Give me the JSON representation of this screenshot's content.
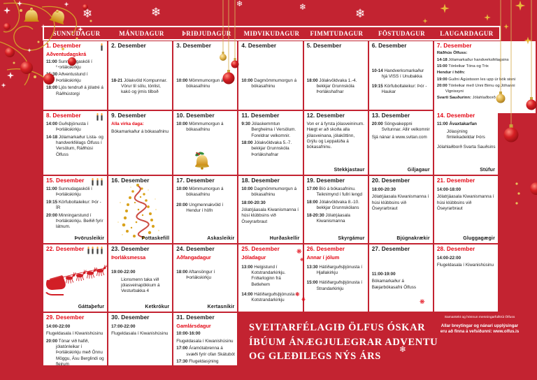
{
  "weekdays": [
    "SUNNUDAGUR",
    "MÁNUDAGUR",
    "ÞRIÐJUDAGUR",
    "MIÐVIKUDAGUR",
    "FIMMTUDAGUR",
    "FÖSTUDAGUR",
    "LAUGARDAGUR"
  ],
  "weeks": [
    [
      {
        "date": "1. Desember",
        "red": true,
        "subtitle": "Aðventudagskrá",
        "candles": 1,
        "events": [
          {
            "t": "11:00",
            "x": "Sunnudagaskóli í Þorlákskirkju"
          },
          {
            "t": "15:30",
            "x": "Aðventustund í Þorlákskirkju"
          },
          {
            "t": "18:00",
            "x": "Ljós tendruð á jólatré á Ráðhústorgi"
          }
        ]
      },
      {
        "date": "2. Desember",
        "events": [
          {
            "t": "18-21",
            "x": "Jólakvöld Kompunnar. Vörur til sölu, tónlist, kakó og ýmis tilboð",
            "c": "mt"
          }
        ]
      },
      {
        "date": "3. Desember",
        "events": [
          {
            "t": "10:00",
            "x": "Mömmumorgun á bókasafninu",
            "c": "mt"
          }
        ]
      },
      {
        "date": "4. Desember",
        "events": [
          {
            "t": "10:00",
            "x": "Dagmömmumorgun á bókasafninu",
            "c": "mt"
          }
        ]
      },
      {
        "date": "5. Desember",
        "events": [
          {
            "t": "18:00",
            "x": "Jólakvöldvaka 1.-4. bekkjar Grunnskóla Þorlákshafnar",
            "c": "mt"
          }
        ]
      },
      {
        "date": "6. Desember",
        "events": [
          {
            "t": "10-14",
            "x": "Handverksmarkaður hjá VISS í Unubakka",
            "c": "mt3"
          },
          {
            "t": "19:15",
            "x": "Körfuboltaleikur: Þór - Haukar",
            "c": "mt1"
          }
        ]
      },
      {
        "date": "7. Desember",
        "red": true,
        "wide": true,
        "events": [
          {
            "h": "Ráðhús Ölfuss:",
            "c": "noind"
          },
          {
            "t": "14-18",
            "x": "Jólamarkaður handverksfélagsins"
          },
          {
            "t": "15:00",
            "x": "Tónleikar Tóna og Trix"
          },
          {
            "h": "Hendur í höfn:",
            "c": "noind"
          },
          {
            "t": "19:00",
            "x": "Guðni Ágústsson les upp úr bók sinni"
          },
          {
            "t": "20:00",
            "x": "Tónleikar með Unni Birnu og Jóhanni Vignissyni"
          },
          {
            "h": "Svarti Sauðurinn:",
            "x": "Jólahlaðborð",
            "c": "noind"
          }
        ]
      }
    ],
    [
      {
        "date": "8. Desember",
        "red": true,
        "candles": 2,
        "events": [
          {
            "t": "14:00",
            "x": "Guðsþjónusta í Þorlákskirkju"
          },
          {
            "t": "14-18",
            "x": "Jólamarkaður Lista- og handverkfélags Ölfuss í Versölum, Ráðhúsi Ölfuss"
          }
        ]
      },
      {
        "date": "9. Desember",
        "events": [
          {
            "x": "Alla virka daga:",
            "c": "red"
          },
          {
            "x": "Bókamarkaður á bókasafninu",
            "c": "noind"
          }
        ]
      },
      {
        "date": "10. Desember",
        "decor": "bell",
        "events": [
          {
            "t": "10:00",
            "x": "Mömmumorgun á bókasafninu"
          }
        ]
      },
      {
        "date": "11. Desember",
        "events": [
          {
            "t": "9:30",
            "x": "Jólaskemmtun Bergheima í Versölum. Foreldrar velkomnir."
          },
          {
            "t": "18:00",
            "x": "Jólakvöldvaka 5.-7. bekkjar Grunnskóla Þorlákshafnar"
          }
        ]
      },
      {
        "date": "12. Desember",
        "lad": "Stekkjastaur",
        "events": [
          {
            "x": "Von er á fyrsta jólasveininum. Hægt er að skoða alla jólasveinana, jólaköttinn, Grýlu og Leppalúða á bókasafninu.",
            "c": "noind"
          }
        ]
      },
      {
        "date": "13. Desember",
        "lad": "Giljagaur",
        "events": [
          {
            "t": "20:00",
            "x": "Söngvakeppni Svítunnar. Allir velkomnir"
          },
          {
            "x": "Sjá nánar á www.svitan.com",
            "c": "noind"
          }
        ]
      },
      {
        "date": "14. Desember",
        "red": true,
        "lad": "Stúfur",
        "events": [
          {
            "t": "11:00",
            "x": "Ávaxtakarfan",
            "c": "b"
          },
          {
            "x": "Jólasýning fimleikadeildar Þórs",
            "c": "ind"
          },
          {
            "x": "Jólahlaðborð Svarta Sauðsins",
            "c": "noind mt1"
          }
        ]
      }
    ],
    [
      {
        "date": "15. Desember",
        "red": true,
        "candles": 3,
        "lad": "Þvörusleikir",
        "events": [
          {
            "t": "11:00",
            "x": "Sunnudagaskóli í Þorlákskirkju"
          },
          {
            "t": "19:15",
            "x": "Körfuboltaleikur: Þór - ÍR"
          },
          {
            "t": "20:00",
            "x": "Minningarstund í Þorlákskirkju. Beðið fyrir látnum."
          }
        ]
      },
      {
        "date": "16. Desember",
        "lad": "Pottaskefill",
        "decor": "tree",
        "events": []
      },
      {
        "date": "17. Desember",
        "lad": "Askasleikir",
        "events": [
          {
            "t": "10:00",
            "x": "Mömmumorgun á bókasafninu"
          },
          {
            "t": "20:00",
            "x": "Ungmennakvöld í Hendur í höfn",
            "c": "mt1"
          }
        ]
      },
      {
        "date": "18. Desember",
        "lad": "Hurðaskellir",
        "events": [
          {
            "t": "10:00",
            "x": "Dagmömmumorgun á bókasafninu"
          },
          {
            "t": "18:00-20:30",
            "c": "lead"
          },
          {
            "x": "Jólatrjáasala Kiwanismanna í húsi klúbbsins við Óseyrarbraut",
            "c": "noind"
          }
        ]
      },
      {
        "date": "19. Desember",
        "lad": "Skyrgámur",
        "events": [
          {
            "t": "17:00",
            "x": "Bíó á bókasafninu. Teiknimynd í fullri lengd"
          },
          {
            "t": "18:00",
            "x": "Jólakvöldvaka 8.-10. bekkjar Grunnskólans"
          },
          {
            "t": "18-20:30",
            "x": "Jólatrjáasala Kiwanismanna"
          }
        ]
      },
      {
        "date": "20. Desember",
        "lad": "Bjúgnakrækir",
        "events": [
          {
            "t": "18:00-20:30",
            "c": "lead"
          },
          {
            "x": "Jólatrjáasala Kiwanismanna í húsi klúbbsins við Óseyrarbraut",
            "c": "noind"
          }
        ]
      },
      {
        "date": "21. Desember",
        "red": true,
        "lad": "Gluggagægir",
        "events": [
          {
            "t": "14:00-18:00",
            "c": "lead"
          },
          {
            "x": "Jólatrjáasala Kiwanismanna í húsi klúbbsins við Óseyrarbraut",
            "c": "noind"
          }
        ]
      }
    ],
    [
      {
        "date": "22. Desember",
        "red": true,
        "candles": 4,
        "lad": "Gáttaþefur",
        "decor": "sleigh",
        "events": []
      },
      {
        "date": "23. Desember",
        "subtitle": "Þorláksmessa",
        "lad": "Ketkrókur",
        "events": [
          {
            "t": "19:00-22:00",
            "c": "lead mt2"
          },
          {
            "x": "Lionsmenn taka við jólasveinapökkum á Vesturbakka 4",
            "c": "ind"
          }
        ]
      },
      {
        "date": "24. Desember",
        "subtitle": "Aðfangadagur",
        "lad": "Kertasníkir",
        "events": [
          {
            "t": "18:00",
            "x": "Aftansöngur í Þorlákskirkju",
            "c": "mt2"
          }
        ]
      },
      {
        "date": "25. Desember",
        "red": true,
        "subtitle": "Jóladagur",
        "events": [
          {
            "t": "13:00",
            "x": "Helgistund í Kotstrandarkirkju. Friðarloginn frá Betlehem",
            "c": "mt1"
          },
          {
            "t": "14:00",
            "x": "Hátíðarguðsþjónusta í Kotstrandarkirkju",
            "c": "mt1"
          }
        ]
      },
      {
        "date": "26. Desember",
        "red": true,
        "subtitle": "Annar í jólum",
        "events": [
          {
            "t": "13:30",
            "x": "Hátíðarguðsþjónusta í Hjallakirkju",
            "c": "mt1"
          },
          {
            "t": "15:00",
            "x": "Hátíðarguðsþjónusta í Strandarkirkju",
            "c": "mt1"
          }
        ]
      },
      {
        "date": "27. Desember",
        "events": [
          {
            "t": "11:00-19:00",
            "c": "lead mt3"
          },
          {
            "x": "Bókamarkaður á Bæjarbókasafni Ölfuss",
            "c": "noind"
          }
        ]
      },
      {
        "date": "28. Desember",
        "red": true,
        "events": [
          {
            "t": "14:00-22:00",
            "c": "lead"
          },
          {
            "x": "Flugeldasala í Kiwanishúsinu",
            "c": "noind"
          }
        ]
      }
    ],
    [
      {
        "date": "29. Desember",
        "red": true,
        "events": [
          {
            "t": "14:00-22:00",
            "c": "lead"
          },
          {
            "x": "Flugeldasala í Kiwanishúsinu",
            "c": "noind"
          },
          {
            "t": "20:00",
            "x": "Tónar við hafið, jólatónleikar í Þorlákskirkju með Önnu Möggu, Ásu Berglindi og fleirum"
          }
        ]
      },
      {
        "date": "30. Desember",
        "events": [
          {
            "t": "17:00-22:00",
            "c": "lead"
          },
          {
            "x": "Flugeldasala í Kiwanishúsinu",
            "c": "noind"
          }
        ]
      },
      {
        "date": "31. Desember",
        "subtitle": "Gamlársdagur",
        "events": [
          {
            "t": "10:00-16:00",
            "c": "lead"
          },
          {
            "x": "Flugeldasala í Kiwanishúsinu",
            "c": "noind"
          },
          {
            "t": "17:00",
            "x": "Áramótabrenna á svæði fyrir ofan Skátubót"
          },
          {
            "t": "17:30",
            "x": "Flugeldasýning"
          }
        ]
      },
      null,
      null,
      null,
      null
    ]
  ],
  "message": {
    "lines": [
      "SVEITARFÉLAGIÐ ÖLFUS ÓSKAR",
      "ÍBÚUM ÁNÆGJULEGRAR ADVENTU",
      "OG GLEÐILEGS NÝS ÁRS"
    ]
  },
  "credits": {
    "line1": "Samantekt og hönnun menningarfulltrúi Ölfuss",
    "line2": "Allar breytingar og nánari upplýsingar",
    "line3": "eru að finna á vefsíðunni: www.olfus.is"
  },
  "icons": {
    "snowflake": "❄",
    "red_snowflake": "❋"
  },
  "colors": {
    "background_red": "#c32331",
    "accent_red": "#e30613",
    "gold": "#e0b34a",
    "cell_white": "#ffffff"
  }
}
